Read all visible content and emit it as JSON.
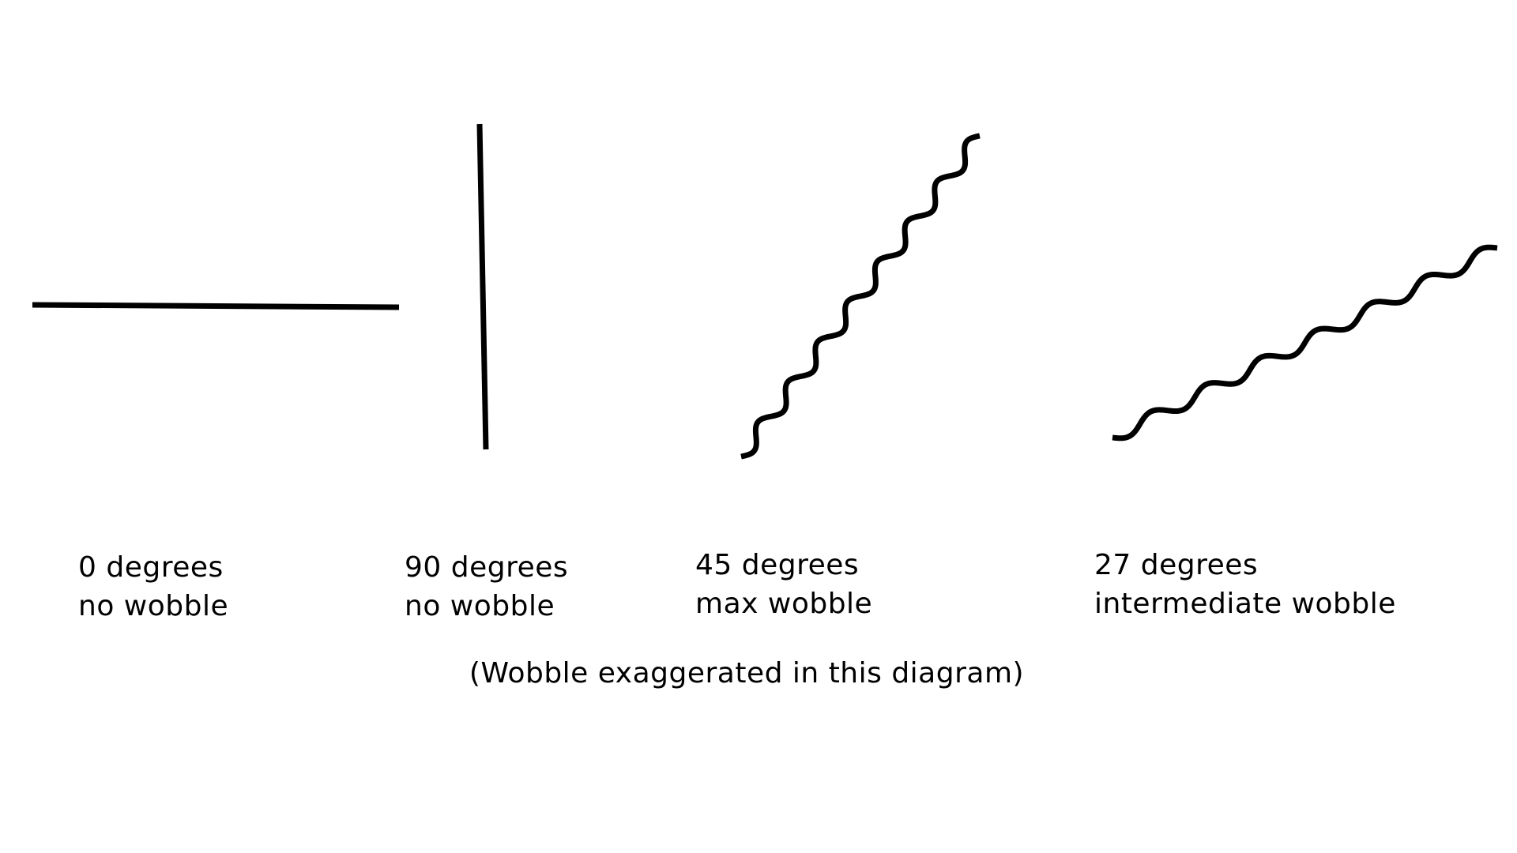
{
  "figures": [
    {
      "id": "0",
      "angle_label": "0 degrees",
      "wobble_label": "no wobble"
    },
    {
      "id": "90",
      "angle_label": "90 degrees",
      "wobble_label": "no wobble"
    },
    {
      "id": "45",
      "angle_label": "45 degrees",
      "wobble_label": "max wobble"
    },
    {
      "id": "27",
      "angle_label": "27 degrees",
      "wobble_label": "intermediate wobble"
    }
  ],
  "caption": "(Wobble exaggerated in this diagram)",
  "colors": {
    "line": "#000000",
    "background": "#ffffff"
  }
}
